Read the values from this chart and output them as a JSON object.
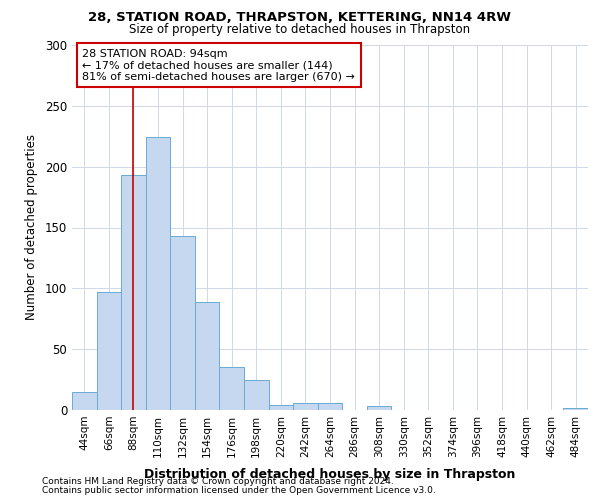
{
  "title1": "28, STATION ROAD, THRAPSTON, KETTERING, NN14 4RW",
  "title2": "Size of property relative to detached houses in Thrapston",
  "xlabel": "Distribution of detached houses by size in Thrapston",
  "ylabel": "Number of detached properties",
  "bin_labels": [
    "44sqm",
    "66sqm",
    "88sqm",
    "110sqm",
    "132sqm",
    "154sqm",
    "176sqm",
    "198sqm",
    "220sqm",
    "242sqm",
    "264sqm",
    "286sqm",
    "308sqm",
    "330sqm",
    "352sqm",
    "374sqm",
    "396sqm",
    "418sqm",
    "440sqm",
    "462sqm",
    "484sqm"
  ],
  "bar_values": [
    15,
    97,
    193,
    224,
    143,
    89,
    35,
    25,
    4,
    6,
    6,
    0,
    3,
    0,
    0,
    0,
    0,
    0,
    0,
    0,
    2
  ],
  "bar_color": "#c5d8f0",
  "bar_edge_color": "#6aaad4",
  "vline_x": 2.0,
  "annotation_text": "28 STATION ROAD: 94sqm\n← 17% of detached houses are smaller (144)\n81% of semi-detached houses are larger (670) →",
  "annotation_box_color": "#ffffff",
  "annotation_box_edge": "#cc0000",
  "vline_color": "#cc0000",
  "ylim": [
    0,
    300
  ],
  "yticks": [
    0,
    50,
    100,
    150,
    200,
    250,
    300
  ],
  "footnote1": "Contains HM Land Registry data © Crown copyright and database right 2024.",
  "footnote2": "Contains public sector information licensed under the Open Government Licence v3.0.",
  "background_color": "#ffffff",
  "grid_color": "#d0d8e8"
}
